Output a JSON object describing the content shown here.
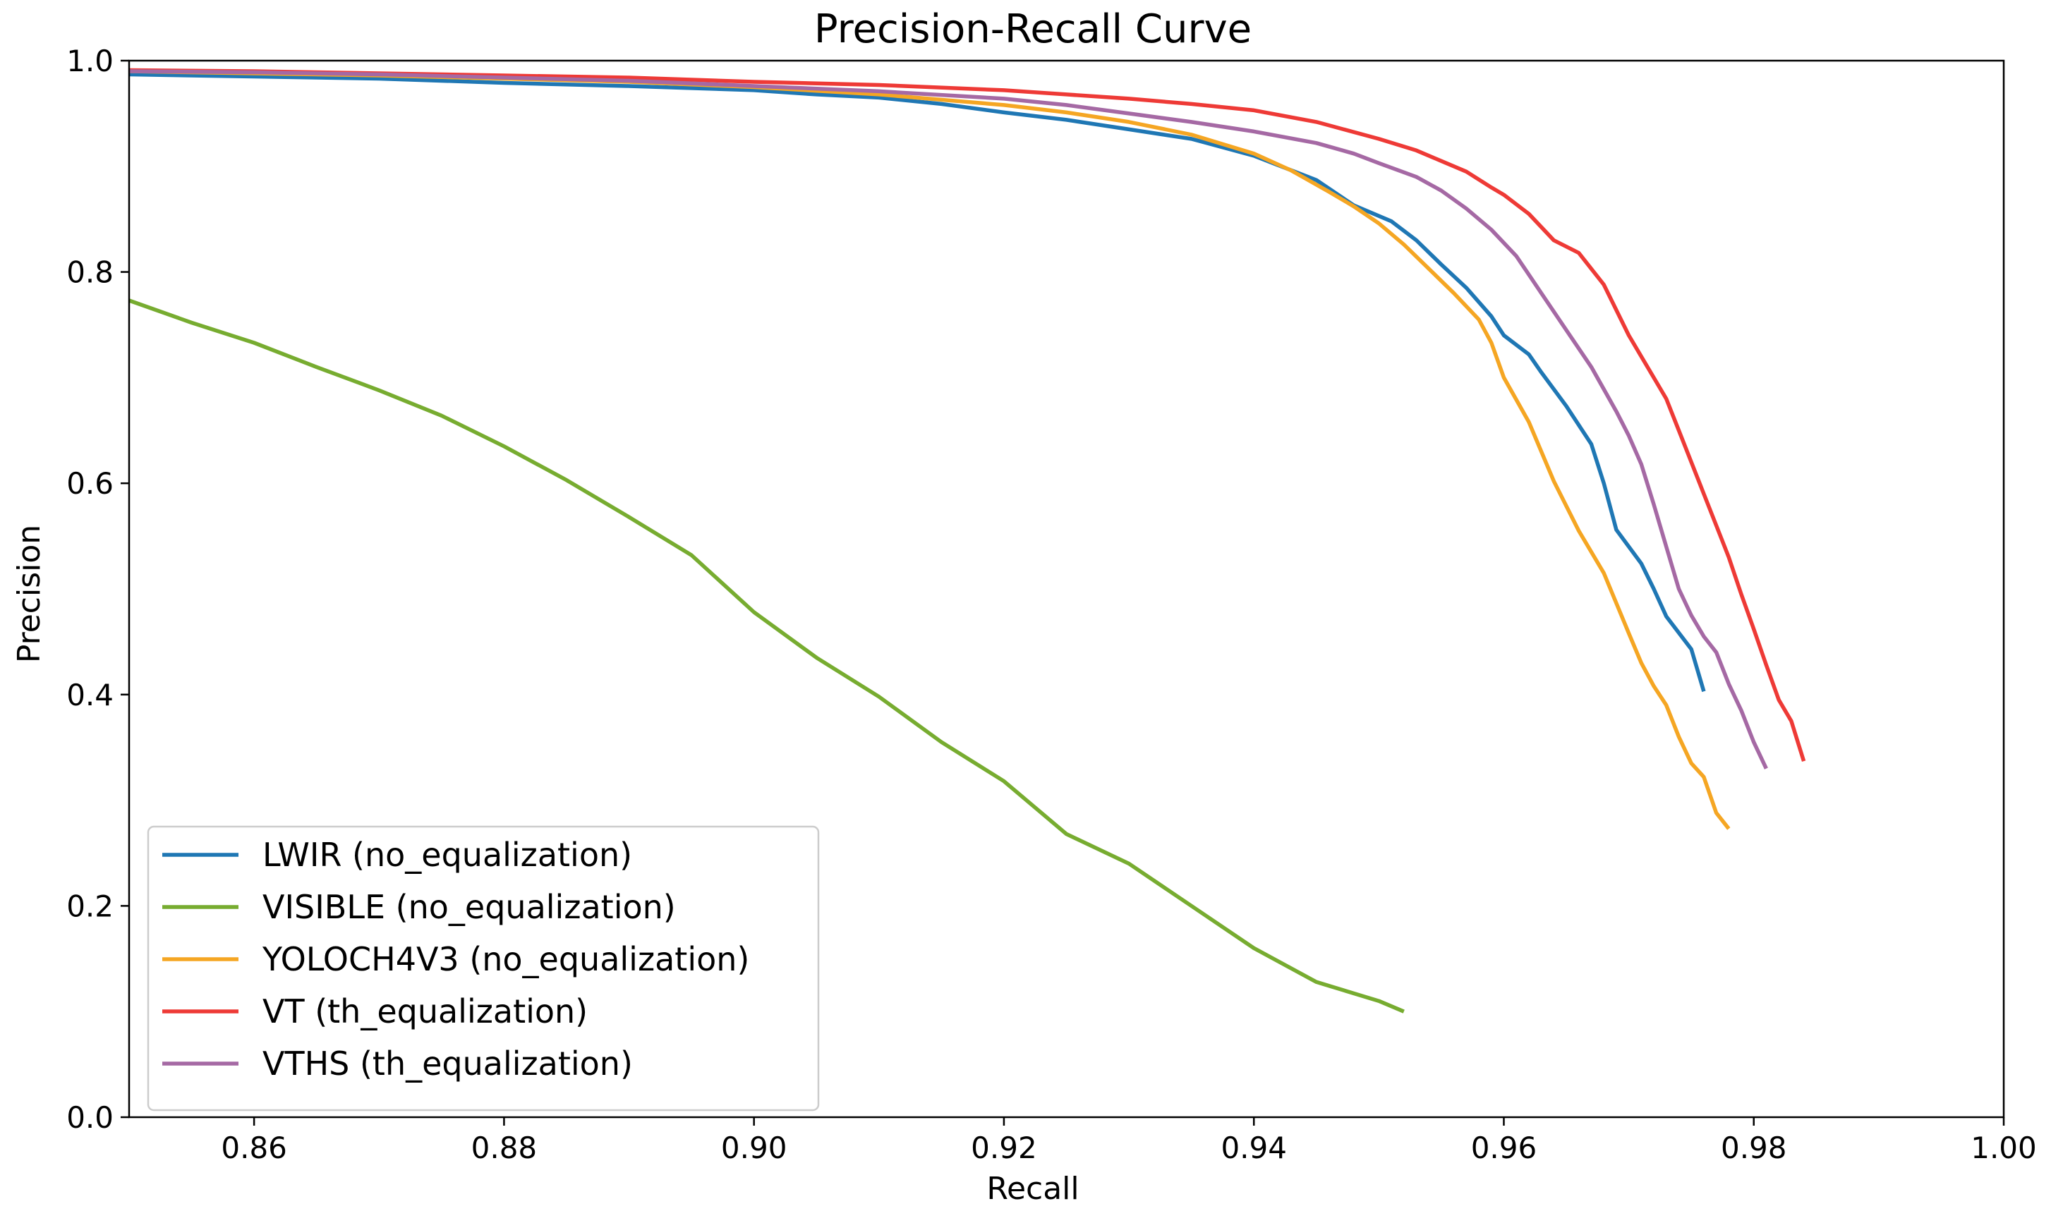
{
  "chart_data": {
    "type": "line",
    "title": "Precision-Recall Curve",
    "xlabel": "Recall",
    "ylabel": "Precision",
    "xlim": [
      0.85,
      1.0
    ],
    "ylim": [
      0.0,
      1.0
    ],
    "xticks": [
      0.86,
      0.88,
      0.9,
      0.92,
      0.94,
      0.96,
      0.98,
      1.0
    ],
    "xtick_labels": [
      "0.86",
      "0.88",
      "0.90",
      "0.92",
      "0.94",
      "0.96",
      "0.98",
      "1.00"
    ],
    "yticks": [
      0.0,
      0.2,
      0.4,
      0.6,
      0.8,
      1.0
    ],
    "ytick_labels": [
      "0.0",
      "0.2",
      "0.4",
      "0.6",
      "0.8",
      "1.0"
    ],
    "grid": false,
    "legend_position": "lower-left",
    "series": [
      {
        "name": "LWIR (no_equalization)",
        "color": "#1f77b4",
        "x": [
          0.85,
          0.86,
          0.87,
          0.88,
          0.89,
          0.9,
          0.905,
          0.91,
          0.915,
          0.92,
          0.925,
          0.93,
          0.935,
          0.94,
          0.945,
          0.948,
          0.951,
          0.953,
          0.955,
          0.957,
          0.959,
          0.96,
          0.962,
          0.963,
          0.965,
          0.967,
          0.968,
          0.969,
          0.971,
          0.972,
          0.973,
          0.975,
          0.976
        ],
        "y": [
          0.987,
          0.985,
          0.983,
          0.979,
          0.976,
          0.972,
          0.968,
          0.965,
          0.959,
          0.951,
          0.944,
          0.935,
          0.926,
          0.91,
          0.887,
          0.863,
          0.848,
          0.83,
          0.807,
          0.785,
          0.758,
          0.74,
          0.722,
          0.705,
          0.673,
          0.637,
          0.6,
          0.556,
          0.524,
          0.5,
          0.474,
          0.443,
          0.403
        ]
      },
      {
        "name": "VISIBLE (no_equalization)",
        "color": "#77ac30",
        "x": [
          0.85,
          0.855,
          0.86,
          0.865,
          0.87,
          0.875,
          0.88,
          0.885,
          0.89,
          0.895,
          0.9,
          0.905,
          0.91,
          0.915,
          0.92,
          0.925,
          0.93,
          0.935,
          0.94,
          0.945,
          0.95,
          0.952
        ],
        "y": [
          0.773,
          0.752,
          0.733,
          0.71,
          0.688,
          0.664,
          0.635,
          0.603,
          0.568,
          0.532,
          0.478,
          0.435,
          0.398,
          0.355,
          0.318,
          0.268,
          0.24,
          0.2,
          0.16,
          0.128,
          0.11,
          0.1
        ]
      },
      {
        "name": "YOLOCH4V3 (no_equalization)",
        "color": "#f5a623",
        "x": [
          0.85,
          0.86,
          0.87,
          0.88,
          0.89,
          0.9,
          0.91,
          0.92,
          0.925,
          0.93,
          0.935,
          0.94,
          0.943,
          0.946,
          0.948,
          0.95,
          0.952,
          0.954,
          0.956,
          0.958,
          0.959,
          0.96,
          0.962,
          0.964,
          0.966,
          0.968,
          0.97,
          0.971,
          0.972,
          0.973,
          0.974,
          0.975,
          0.976,
          0.977,
          0.978
        ],
        "y": [
          0.99,
          0.988,
          0.986,
          0.983,
          0.98,
          0.975,
          0.968,
          0.958,
          0.951,
          0.942,
          0.93,
          0.912,
          0.896,
          0.876,
          0.862,
          0.846,
          0.826,
          0.803,
          0.78,
          0.755,
          0.733,
          0.7,
          0.658,
          0.602,
          0.555,
          0.515,
          0.458,
          0.43,
          0.408,
          0.39,
          0.36,
          0.335,
          0.322,
          0.288,
          0.273
        ]
      },
      {
        "name": "VT (th_equalization)",
        "color": "#ee3a36",
        "x": [
          0.85,
          0.86,
          0.87,
          0.88,
          0.89,
          0.9,
          0.91,
          0.92,
          0.925,
          0.93,
          0.935,
          0.94,
          0.945,
          0.95,
          0.953,
          0.955,
          0.957,
          0.959,
          0.96,
          0.962,
          0.964,
          0.966,
          0.968,
          0.97,
          0.972,
          0.973,
          0.974,
          0.975,
          0.976,
          0.977,
          0.978,
          0.979,
          0.98,
          0.981,
          0.982,
          0.983,
          0.984
        ],
        "y": [
          0.991,
          0.99,
          0.988,
          0.986,
          0.984,
          0.98,
          0.977,
          0.972,
          0.968,
          0.964,
          0.959,
          0.953,
          0.942,
          0.926,
          0.915,
          0.905,
          0.895,
          0.88,
          0.873,
          0.855,
          0.83,
          0.818,
          0.788,
          0.74,
          0.7,
          0.68,
          0.65,
          0.62,
          0.59,
          0.56,
          0.53,
          0.495,
          0.462,
          0.428,
          0.395,
          0.375,
          0.337
        ]
      },
      {
        "name": "VTHS (th_equalization)",
        "color": "#a569a4",
        "x": [
          0.85,
          0.86,
          0.87,
          0.88,
          0.89,
          0.9,
          0.91,
          0.92,
          0.925,
          0.93,
          0.935,
          0.94,
          0.945,
          0.948,
          0.95,
          0.953,
          0.955,
          0.957,
          0.959,
          0.961,
          0.963,
          0.965,
          0.967,
          0.969,
          0.97,
          0.971,
          0.972,
          0.973,
          0.974,
          0.975,
          0.976,
          0.977,
          0.978,
          0.979,
          0.98,
          0.981
        ],
        "y": [
          0.99,
          0.989,
          0.987,
          0.984,
          0.981,
          0.976,
          0.971,
          0.964,
          0.958,
          0.95,
          0.942,
          0.933,
          0.922,
          0.912,
          0.903,
          0.89,
          0.877,
          0.86,
          0.84,
          0.815,
          0.78,
          0.745,
          0.71,
          0.668,
          0.645,
          0.618,
          0.58,
          0.54,
          0.5,
          0.475,
          0.455,
          0.44,
          0.41,
          0.385,
          0.355,
          0.33
        ]
      }
    ]
  }
}
